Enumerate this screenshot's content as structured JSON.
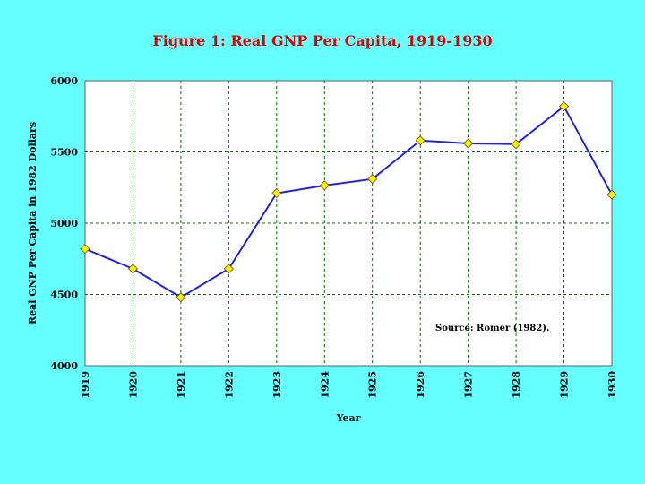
{
  "chart_data": {
    "type": "line",
    "title": "Figure 1: Real GNP Per Capita, 1919-1930",
    "xlabel": "Year",
    "ylabel": "Real GNP Per Capita in 1982 Dollars",
    "x": [
      "1919",
      "1920",
      "1921",
      "1922",
      "1923",
      "1924",
      "1925",
      "1926",
      "1927",
      "1928",
      "1929",
      "1930"
    ],
    "series": [
      {
        "values": [
          4820,
          4680,
          4480,
          4680,
          5210,
          5265,
          5310,
          5580,
          5560,
          5555,
          5820,
          5200
        ]
      }
    ],
    "ylim": [
      4000,
      6000
    ],
    "yticks": [
      "4000",
      "4500",
      "5000",
      "5500",
      "6000"
    ],
    "grid": true,
    "annotation": "Source: Romer (1982).",
    "colors": {
      "background": "#66ffff",
      "plot_area": "#ffffff",
      "line": "#2222dd",
      "marker": "#ffee00",
      "title": "#e00000",
      "grid": "#007000"
    }
  }
}
